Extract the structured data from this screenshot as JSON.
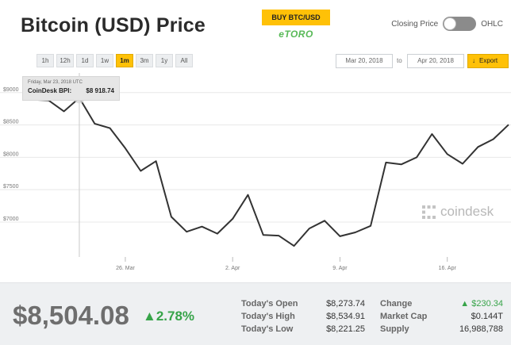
{
  "header": {
    "title": "Bitcoin (USD) Price",
    "buy_button": "BUY BTC/USD",
    "broker": "eTORO",
    "toggle_left": "Closing Price",
    "toggle_right": "OHLC"
  },
  "controls": {
    "ranges": [
      {
        "label": "1h",
        "active": false
      },
      {
        "label": "12h",
        "active": false
      },
      {
        "label": "1d",
        "active": false
      },
      {
        "label": "1w",
        "active": false
      },
      {
        "label": "1m",
        "active": true
      },
      {
        "label": "3m",
        "active": false
      },
      {
        "label": "1y",
        "active": false
      },
      {
        "label": "All",
        "active": false
      }
    ],
    "date_from": "Mar 20, 2018",
    "date_to_label": "to",
    "date_to": "Apr 20, 2018",
    "export_label": "Export"
  },
  "tooltip": {
    "date": "Friday, Mar 23, 2018 UTC",
    "label": "CoinDesk BPI:",
    "value": "$8 918.74"
  },
  "watermark": "coindesk",
  "chart_data": {
    "type": "line",
    "series": [
      {
        "values": [
          {
            "x": "Mar 20",
            "y": 8890
          },
          {
            "x": "Mar 21",
            "y": 8880
          },
          {
            "x": "Mar 22",
            "y": 8710
          },
          {
            "x": "Mar 23",
            "y": 8918.74
          },
          {
            "x": "Mar 24",
            "y": 8520
          },
          {
            "x": "Mar 25",
            "y": 8450
          },
          {
            "x": "Mar 26",
            "y": 8140
          },
          {
            "x": "Mar 27",
            "y": 7790
          },
          {
            "x": "Mar 28",
            "y": 7940
          },
          {
            "x": "Mar 29",
            "y": 7080
          },
          {
            "x": "Mar 30",
            "y": 6850
          },
          {
            "x": "Mar 31",
            "y": 6930
          },
          {
            "x": "Apr 1",
            "y": 6820
          },
          {
            "x": "Apr 2",
            "y": 7050
          },
          {
            "x": "Apr 3",
            "y": 7420
          },
          {
            "x": "Apr 4",
            "y": 6800
          },
          {
            "x": "Apr 5",
            "y": 6790
          },
          {
            "x": "Apr 6",
            "y": 6630
          },
          {
            "x": "Apr 7",
            "y": 6900
          },
          {
            "x": "Apr 8",
            "y": 7020
          },
          {
            "x": "Apr 9",
            "y": 6780
          },
          {
            "x": "Apr 10",
            "y": 6840
          },
          {
            "x": "Apr 11",
            "y": 6940
          },
          {
            "x": "Apr 12",
            "y": 7920
          },
          {
            "x": "Apr 13",
            "y": 7890
          },
          {
            "x": "Apr 14",
            "y": 8000
          },
          {
            "x": "Apr 15",
            "y": 8360
          },
          {
            "x": "Apr 16",
            "y": 8050
          },
          {
            "x": "Apr 17",
            "y": 7900
          },
          {
            "x": "Apr 18",
            "y": 8160
          },
          {
            "x": "Apr 19",
            "y": 8280
          },
          {
            "x": "Apr 20",
            "y": 8504.08
          }
        ]
      }
    ],
    "yticks": [
      {
        "value": 7000,
        "label": "$7000"
      },
      {
        "value": 7500,
        "label": "$7500"
      },
      {
        "value": 8000,
        "label": "$8000"
      },
      {
        "value": 8500,
        "label": "$8500"
      },
      {
        "value": 9000,
        "label": "$9000"
      }
    ],
    "xticks": [
      {
        "x": "Mar 26",
        "label": "26. Mar"
      },
      {
        "x": "Apr 2",
        "label": "2. Apr"
      },
      {
        "x": "Apr 9",
        "label": "9. Apr"
      },
      {
        "x": "Apr 16",
        "label": "16. Apr"
      }
    ],
    "ylim": [
      6460,
      9230
    ],
    "highlight": {
      "x": "Mar 23",
      "y": 8918.74
    },
    "grid": true,
    "line_color": "#333333"
  },
  "stats": {
    "price": "$8,504.08",
    "change_pct": "2.78%",
    "today_open_label": "Today's Open",
    "today_open": "$8,273.74",
    "today_high_label": "Today's High",
    "today_high": "$8,534.91",
    "today_low_label": "Today's Low",
    "today_low": "$8,221.25",
    "change_label": "Change",
    "change": "$230.34",
    "market_cap_label": "Market Cap",
    "market_cap": "$0.144T",
    "supply_label": "Supply",
    "supply": "16,988,788",
    "up_color": "#37a449"
  }
}
